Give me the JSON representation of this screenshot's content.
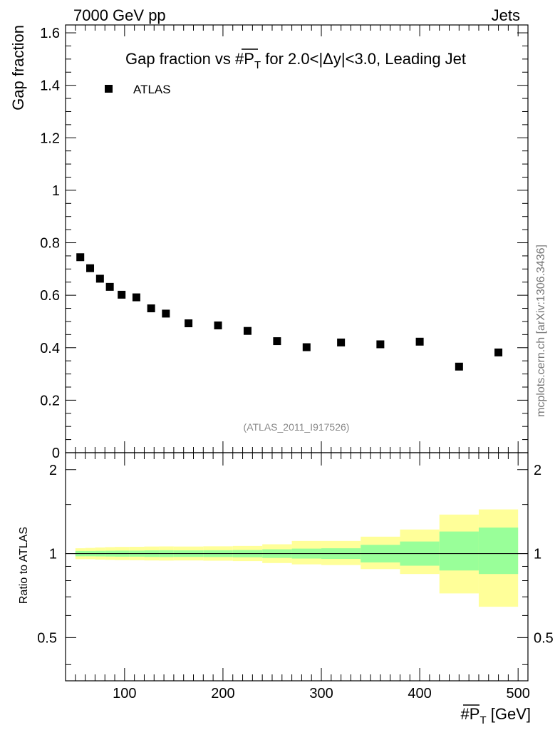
{
  "header": {
    "left": "7000 GeV pp",
    "right": "Jets"
  },
  "side_label": "mcplots.cern.ch [arXiv:1306.3436]",
  "analysis_tag": "(ATLAS_2011_I917526)",
  "title": {
    "prefix": "Gap fraction vs #",
    "symbol": "P",
    "subscript": "T",
    "suffix": " for 2.0<|Δy|<3.0, Leading Jet"
  },
  "xlabel": {
    "prefix": "#",
    "symbol": "P",
    "subscript": "T",
    "suffix": " [GeV]"
  },
  "chart_data": [
    {
      "type": "scatter",
      "panel": "main",
      "title": "Gap fraction vs #P_T for 2.0<|Δy|<3.0, Leading Jet",
      "ylabel": "Gap fraction",
      "xlim": [
        40,
        510
      ],
      "ylim": [
        0,
        1.63
      ],
      "xticks": [
        100,
        200,
        300,
        400,
        500
      ],
      "yticks": [
        0,
        0.2,
        0.4,
        0.6,
        0.8,
        1,
        1.2,
        1.4,
        1.6
      ],
      "ytick_labels": [
        "0",
        "0.2",
        "0.4",
        "0.6",
        "0.8",
        "1",
        "1.2",
        "1.4",
        "1.6"
      ],
      "legend": {
        "position": "top-left",
        "entries": [
          "ATLAS"
        ]
      },
      "series": [
        {
          "name": "ATLAS",
          "x": [
            55,
            65,
            75,
            85,
            97,
            112,
            127,
            142,
            165,
            195,
            225,
            255,
            285,
            320,
            360,
            400,
            440,
            480
          ],
          "y": [
            0.745,
            0.703,
            0.663,
            0.632,
            0.602,
            0.592,
            0.55,
            0.53,
            0.493,
            0.485,
            0.464,
            0.425,
            0.402,
            0.42,
            0.413,
            0.423,
            0.328,
            0.382
          ]
        }
      ]
    },
    {
      "type": "area",
      "panel": "ratio",
      "ylabel": "Ratio to ATLAS",
      "ylim": [
        0.35,
        2.3
      ],
      "yscale": "log",
      "yticks": [
        0.5,
        1,
        2
      ],
      "ytick_labels": [
        "0.5",
        "1",
        "2"
      ],
      "reference_line": 1,
      "bins": [
        {
          "lo": 50,
          "hi": 60,
          "inner": [
            0.978,
            1.022
          ],
          "outer": [
            0.955,
            1.045
          ]
        },
        {
          "lo": 60,
          "hi": 70,
          "inner": [
            0.978,
            1.022
          ],
          "outer": [
            0.955,
            1.048
          ]
        },
        {
          "lo": 70,
          "hi": 80,
          "inner": [
            0.977,
            1.023
          ],
          "outer": [
            0.952,
            1.052
          ]
        },
        {
          "lo": 80,
          "hi": 90,
          "inner": [
            0.976,
            1.024
          ],
          "outer": [
            0.95,
            1.055
          ]
        },
        {
          "lo": 90,
          "hi": 105,
          "inner": [
            0.975,
            1.025
          ],
          "outer": [
            0.948,
            1.057
          ]
        },
        {
          "lo": 105,
          "hi": 120,
          "inner": [
            0.975,
            1.025
          ],
          "outer": [
            0.947,
            1.058
          ]
        },
        {
          "lo": 120,
          "hi": 135,
          "inner": [
            0.973,
            1.027
          ],
          "outer": [
            0.945,
            1.06
          ]
        },
        {
          "lo": 135,
          "hi": 150,
          "inner": [
            0.972,
            1.028
          ],
          "outer": [
            0.944,
            1.061
          ]
        },
        {
          "lo": 150,
          "hi": 180,
          "inner": [
            0.973,
            1.027
          ],
          "outer": [
            0.945,
            1.06
          ]
        },
        {
          "lo": 180,
          "hi": 210,
          "inner": [
            0.972,
            1.028
          ],
          "outer": [
            0.943,
            1.062
          ]
        },
        {
          "lo": 210,
          "hi": 240,
          "inner": [
            0.97,
            1.03
          ],
          "outer": [
            0.94,
            1.065
          ]
        },
        {
          "lo": 240,
          "hi": 270,
          "inner": [
            0.965,
            1.036
          ],
          "outer": [
            0.925,
            1.08
          ]
        },
        {
          "lo": 270,
          "hi": 300,
          "inner": [
            0.96,
            1.042
          ],
          "outer": [
            0.915,
            1.11
          ]
        },
        {
          "lo": 300,
          "hi": 340,
          "inner": [
            0.957,
            1.045
          ],
          "outer": [
            0.91,
            1.11
          ]
        },
        {
          "lo": 340,
          "hi": 380,
          "inner": [
            0.93,
            1.075
          ],
          "outer": [
            0.88,
            1.15
          ]
        },
        {
          "lo": 380,
          "hi": 420,
          "inner": [
            0.905,
            1.105
          ],
          "outer": [
            0.845,
            1.22
          ]
        },
        {
          "lo": 420,
          "hi": 460,
          "inner": [
            0.87,
            1.2
          ],
          "outer": [
            0.72,
            1.38
          ]
        },
        {
          "lo": 460,
          "hi": 500,
          "inner": [
            0.845,
            1.24
          ],
          "outer": [
            0.645,
            1.44
          ]
        }
      ],
      "colors": {
        "inner": "#99ff99",
        "outer": "#ffff99"
      }
    }
  ]
}
